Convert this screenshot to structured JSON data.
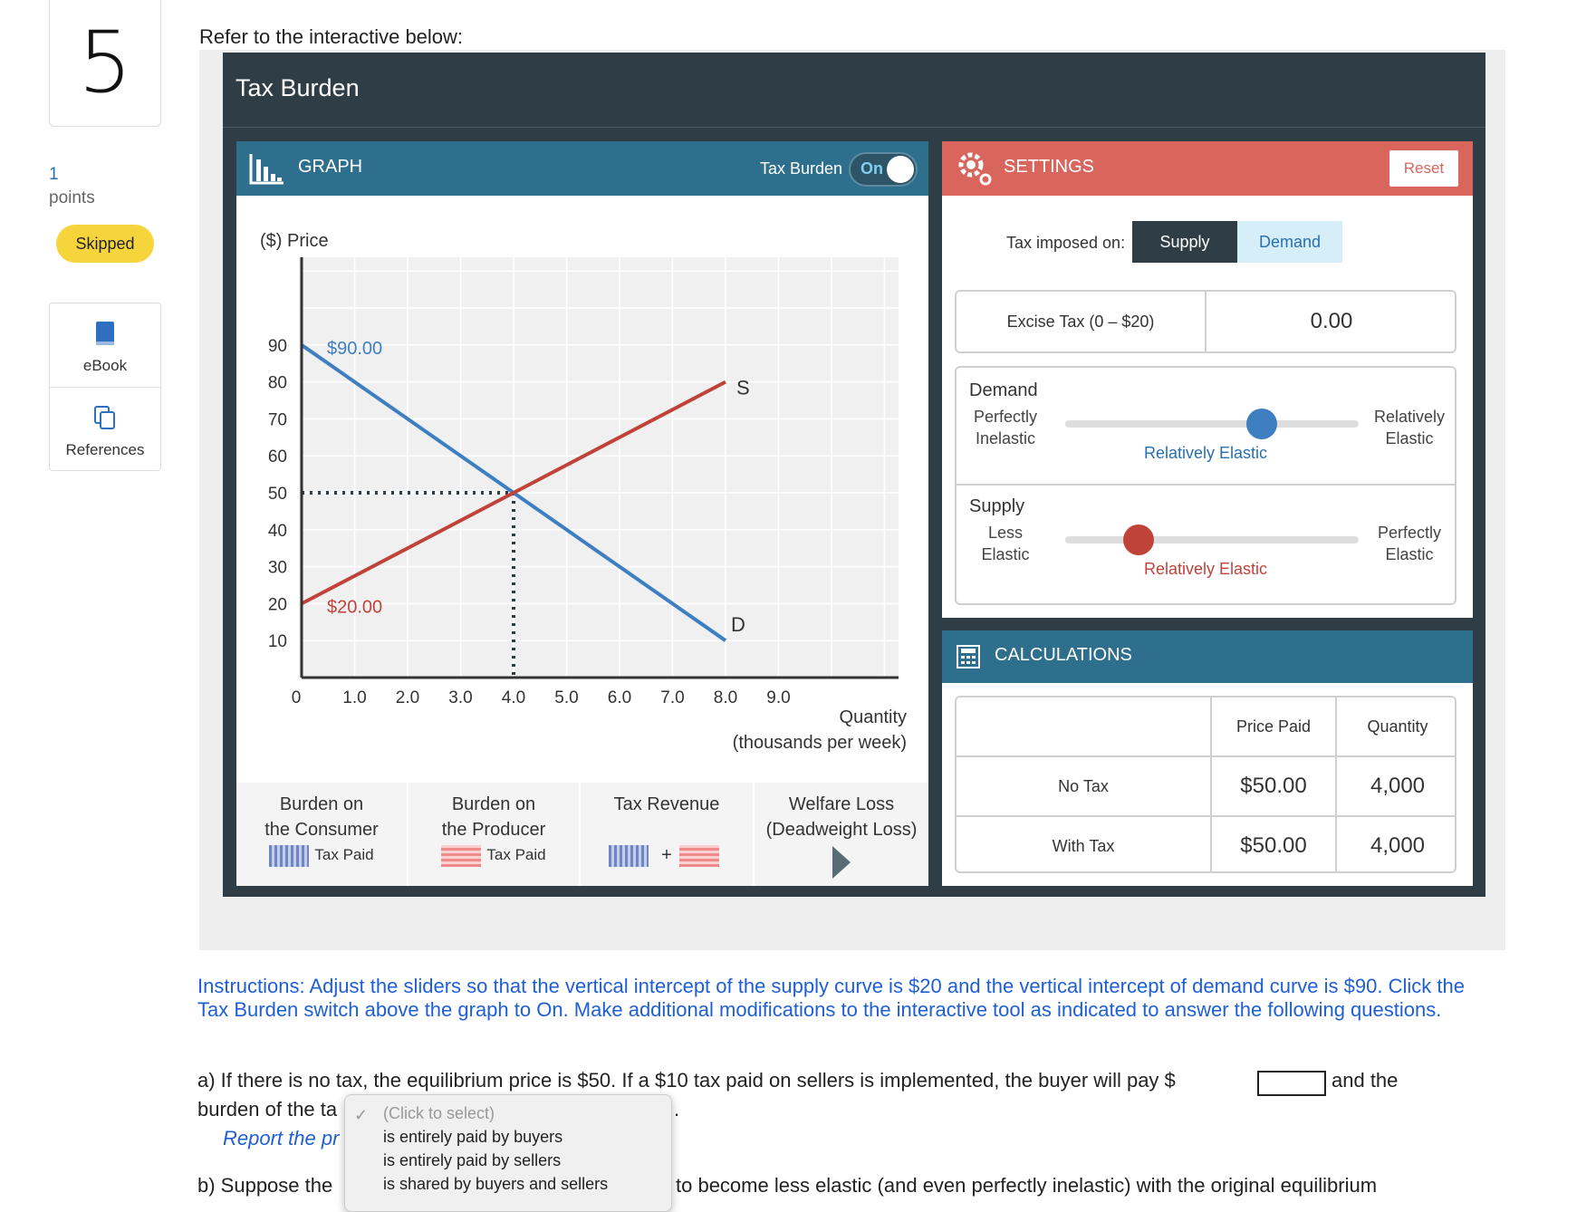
{
  "question": {
    "number": "5",
    "points_value": "1",
    "points_label": "points",
    "status": "Skipped"
  },
  "resources": [
    {
      "label": "eBook",
      "icon": "book-icon"
    },
    {
      "label": "References",
      "icon": "copy-icon"
    }
  ],
  "prompt": "Refer to the interactive below:",
  "app": {
    "title": "Tax Burden"
  },
  "graph": {
    "header": "GRAPH",
    "tax_burden_label": "Tax Burden",
    "toggle_state": "On",
    "price_label": "($) Price",
    "quantity_label": "Quantity",
    "quantity_units": "(thousands per week)",
    "demand_label": "D",
    "supply_label": "S",
    "demand_intercept_label": "$90.00",
    "supply_intercept_label": "$20.00"
  },
  "chart_data": {
    "type": "line",
    "ylabel": "($) Price",
    "xlabel": "Quantity (thousands per week)",
    "xlim": [
      0,
      10
    ],
    "ylim": [
      0,
      90
    ],
    "x_ticks": [
      "0",
      "1.0",
      "2.0",
      "3.0",
      "4.0",
      "5.0",
      "6.0",
      "7.0",
      "8.0",
      "9.0"
    ],
    "y_ticks": [
      "10",
      "20",
      "30",
      "40",
      "50",
      "60",
      "70",
      "80",
      "90"
    ],
    "grid": true,
    "series": [
      {
        "name": "D",
        "color": "#3d7fc1",
        "points": [
          [
            0,
            90
          ],
          [
            8,
            10
          ]
        ]
      },
      {
        "name": "S",
        "color": "#c0433a",
        "points": [
          [
            0,
            20
          ],
          [
            8,
            80
          ]
        ]
      }
    ],
    "equilibrium": {
      "quantity": 4,
      "price": 50
    },
    "annotations": [
      "$90.00",
      "$20.00"
    ]
  },
  "legend": [
    {
      "line1": "Burden on",
      "line2": "the Consumer",
      "swatch": "blue",
      "note": "Tax Paid"
    },
    {
      "line1": "Burden on",
      "line2": "the Producer",
      "swatch": "red",
      "note": "Tax Paid"
    },
    {
      "line1": "Tax Revenue",
      "plus": "+"
    },
    {
      "line1": "Welfare Loss",
      "line2": "(Deadweight Loss)"
    }
  ],
  "settings": {
    "header": "SETTINGS",
    "reset": "Reset",
    "tax_imposed_label": "Tax imposed on:",
    "supply_btn": "Supply",
    "demand_btn": "Demand",
    "selected": "Supply",
    "excise_label": "Excise Tax (0 – $20)",
    "excise_value": "0.00",
    "demand": {
      "title": "Demand",
      "left": [
        "Perfectly",
        "Inelastic"
      ],
      "right": [
        "Relatively",
        "Elastic"
      ],
      "value_label": "Relatively Elastic",
      "position": 0.67,
      "color": "#3d7fc1"
    },
    "supply": {
      "title": "Supply",
      "left": [
        "Less",
        "Elastic"
      ],
      "right": [
        "Perfectly",
        "Elastic"
      ],
      "value_label": "Relatively Elastic",
      "position": 0.25,
      "color": "#c0433a"
    }
  },
  "calculations": {
    "header": "CALCULATIONS",
    "col_price": "Price Paid",
    "col_qty": "Quantity",
    "rows": [
      {
        "label": "No Tax",
        "price": "$50.00",
        "qty": "4,000"
      },
      {
        "label": "With Tax",
        "price": "$50.00",
        "qty": "4,000"
      }
    ]
  },
  "instructions": "Instructions: Adjust the sliders so that the vertical intercept of the supply curve is $20 and the vertical intercept of demand curve is $90.  Click the Tax Burden switch above the graph to On.  Make additional modifications to the interactive tool as indicated to answer the following questions.",
  "qa": {
    "a_text": "a) If there is no tax, the equilibrium price is $50.  If a $10 tax paid on sellers is implemented, the buyer will pay $",
    "a_after": "and the",
    "a_line2": "burden of the ta",
    "a_period": ".",
    "report": "Report the pr",
    "b_start": "b) Suppose the",
    "b_end": "to become less elastic (and even perfectly inelastic) with the original equilibrium"
  },
  "dropdown": {
    "placeholder": "(Click to select)",
    "options": [
      "is entirely paid by buyers",
      "is entirely paid by sellers",
      "is shared by buyers and sellers"
    ]
  }
}
